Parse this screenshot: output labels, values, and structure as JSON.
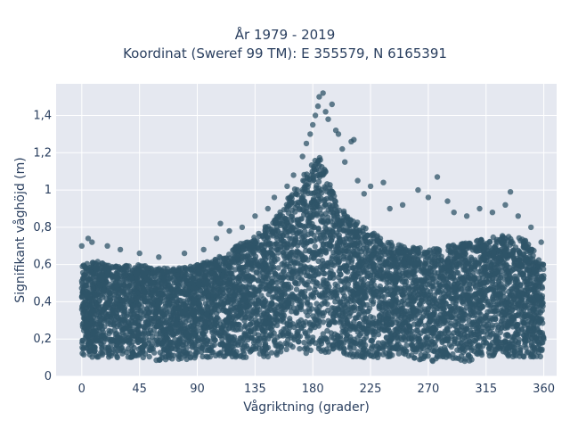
{
  "chart_data": {
    "type": "scatter",
    "title_line1": "År 1979 - 2019",
    "title_line2": "Koordinat (Sweref 99 TM): E 355579, N 6165391",
    "xlabel": "Vågriktning (grader)",
    "ylabel": "Signifikant våghöjd (m)",
    "xlim": [
      -20,
      370
    ],
    "ylim": [
      0,
      1.57
    ],
    "x_ticks": [
      0,
      45,
      90,
      135,
      180,
      225,
      270,
      315,
      360
    ],
    "x_tick_labels": [
      "0",
      "45",
      "90",
      "135",
      "180",
      "225",
      "270",
      "315",
      "360"
    ],
    "y_ticks": [
      0,
      0.2,
      0.4,
      0.6,
      0.8,
      1.0,
      1.2,
      1.4
    ],
    "y_tick_labels": [
      "0",
      "0,2",
      "0,4",
      "0,6",
      "0,8",
      "1",
      "1,2",
      "1,4"
    ],
    "grid": true,
    "marker_color": "#2f5468",
    "plot_bg": "#e5e8f0",
    "envelope": {
      "x": [
        0,
        10,
        20,
        30,
        45,
        60,
        75,
        90,
        100,
        110,
        120,
        135,
        150,
        160,
        170,
        175,
        180,
        185,
        190,
        195,
        200,
        210,
        225,
        240,
        255,
        270,
        285,
        300,
        315,
        330,
        345,
        355,
        360
      ],
      "y_max": [
        0.6,
        0.62,
        0.6,
        0.6,
        0.6,
        0.58,
        0.58,
        0.6,
        0.62,
        0.65,
        0.7,
        0.75,
        0.85,
        0.95,
        1.05,
        1.1,
        1.15,
        1.18,
        1.1,
        1.0,
        0.92,
        0.85,
        0.78,
        0.72,
        0.7,
        0.68,
        0.7,
        0.72,
        0.74,
        0.76,
        0.74,
        0.65,
        0.6
      ],
      "y_min": [
        0.1,
        0.1,
        0.1,
        0.1,
        0.1,
        0.08,
        0.08,
        0.1,
        0.1,
        0.1,
        0.1,
        0.1,
        0.1,
        0.1,
        0.12,
        0.12,
        0.12,
        0.12,
        0.12,
        0.12,
        0.12,
        0.1,
        0.1,
        0.1,
        0.1,
        0.08,
        0.08,
        0.08,
        0.1,
        0.1,
        0.1,
        0.1,
        0.1
      ]
    },
    "outliers": [
      {
        "x": 0,
        "y": 0.7
      },
      {
        "x": 5,
        "y": 0.74
      },
      {
        "x": 8,
        "y": 0.72
      },
      {
        "x": 20,
        "y": 0.7
      },
      {
        "x": 30,
        "y": 0.68
      },
      {
        "x": 45,
        "y": 0.66
      },
      {
        "x": 60,
        "y": 0.64
      },
      {
        "x": 80,
        "y": 0.66
      },
      {
        "x": 95,
        "y": 0.68
      },
      {
        "x": 105,
        "y": 0.74
      },
      {
        "x": 108,
        "y": 0.82
      },
      {
        "x": 115,
        "y": 0.78
      },
      {
        "x": 125,
        "y": 0.8
      },
      {
        "x": 135,
        "y": 0.86
      },
      {
        "x": 145,
        "y": 0.9
      },
      {
        "x": 150,
        "y": 0.96
      },
      {
        "x": 160,
        "y": 1.02
      },
      {
        "x": 165,
        "y": 1.08
      },
      {
        "x": 172,
        "y": 1.18
      },
      {
        "x": 175,
        "y": 1.25
      },
      {
        "x": 178,
        "y": 1.3
      },
      {
        "x": 180,
        "y": 1.35
      },
      {
        "x": 182,
        "y": 1.4
      },
      {
        "x": 184,
        "y": 1.45
      },
      {
        "x": 185,
        "y": 1.5
      },
      {
        "x": 188,
        "y": 1.52
      },
      {
        "x": 190,
        "y": 1.42
      },
      {
        "x": 192,
        "y": 1.38
      },
      {
        "x": 195,
        "y": 1.46
      },
      {
        "x": 198,
        "y": 1.32
      },
      {
        "x": 200,
        "y": 1.3
      },
      {
        "x": 203,
        "y": 1.22
      },
      {
        "x": 205,
        "y": 1.15
      },
      {
        "x": 210,
        "y": 1.26
      },
      {
        "x": 212,
        "y": 1.27
      },
      {
        "x": 215,
        "y": 1.05
      },
      {
        "x": 220,
        "y": 0.98
      },
      {
        "x": 225,
        "y": 1.02
      },
      {
        "x": 235,
        "y": 1.04
      },
      {
        "x": 240,
        "y": 0.9
      },
      {
        "x": 250,
        "y": 0.92
      },
      {
        "x": 262,
        "y": 1.0
      },
      {
        "x": 270,
        "y": 0.96
      },
      {
        "x": 277,
        "y": 1.07
      },
      {
        "x": 285,
        "y": 0.94
      },
      {
        "x": 290,
        "y": 0.88
      },
      {
        "x": 300,
        "y": 0.86
      },
      {
        "x": 310,
        "y": 0.9
      },
      {
        "x": 320,
        "y": 0.88
      },
      {
        "x": 330,
        "y": 0.92
      },
      {
        "x": 334,
        "y": 0.99
      },
      {
        "x": 340,
        "y": 0.86
      },
      {
        "x": 350,
        "y": 0.8
      },
      {
        "x": 358,
        "y": 0.72
      }
    ]
  }
}
